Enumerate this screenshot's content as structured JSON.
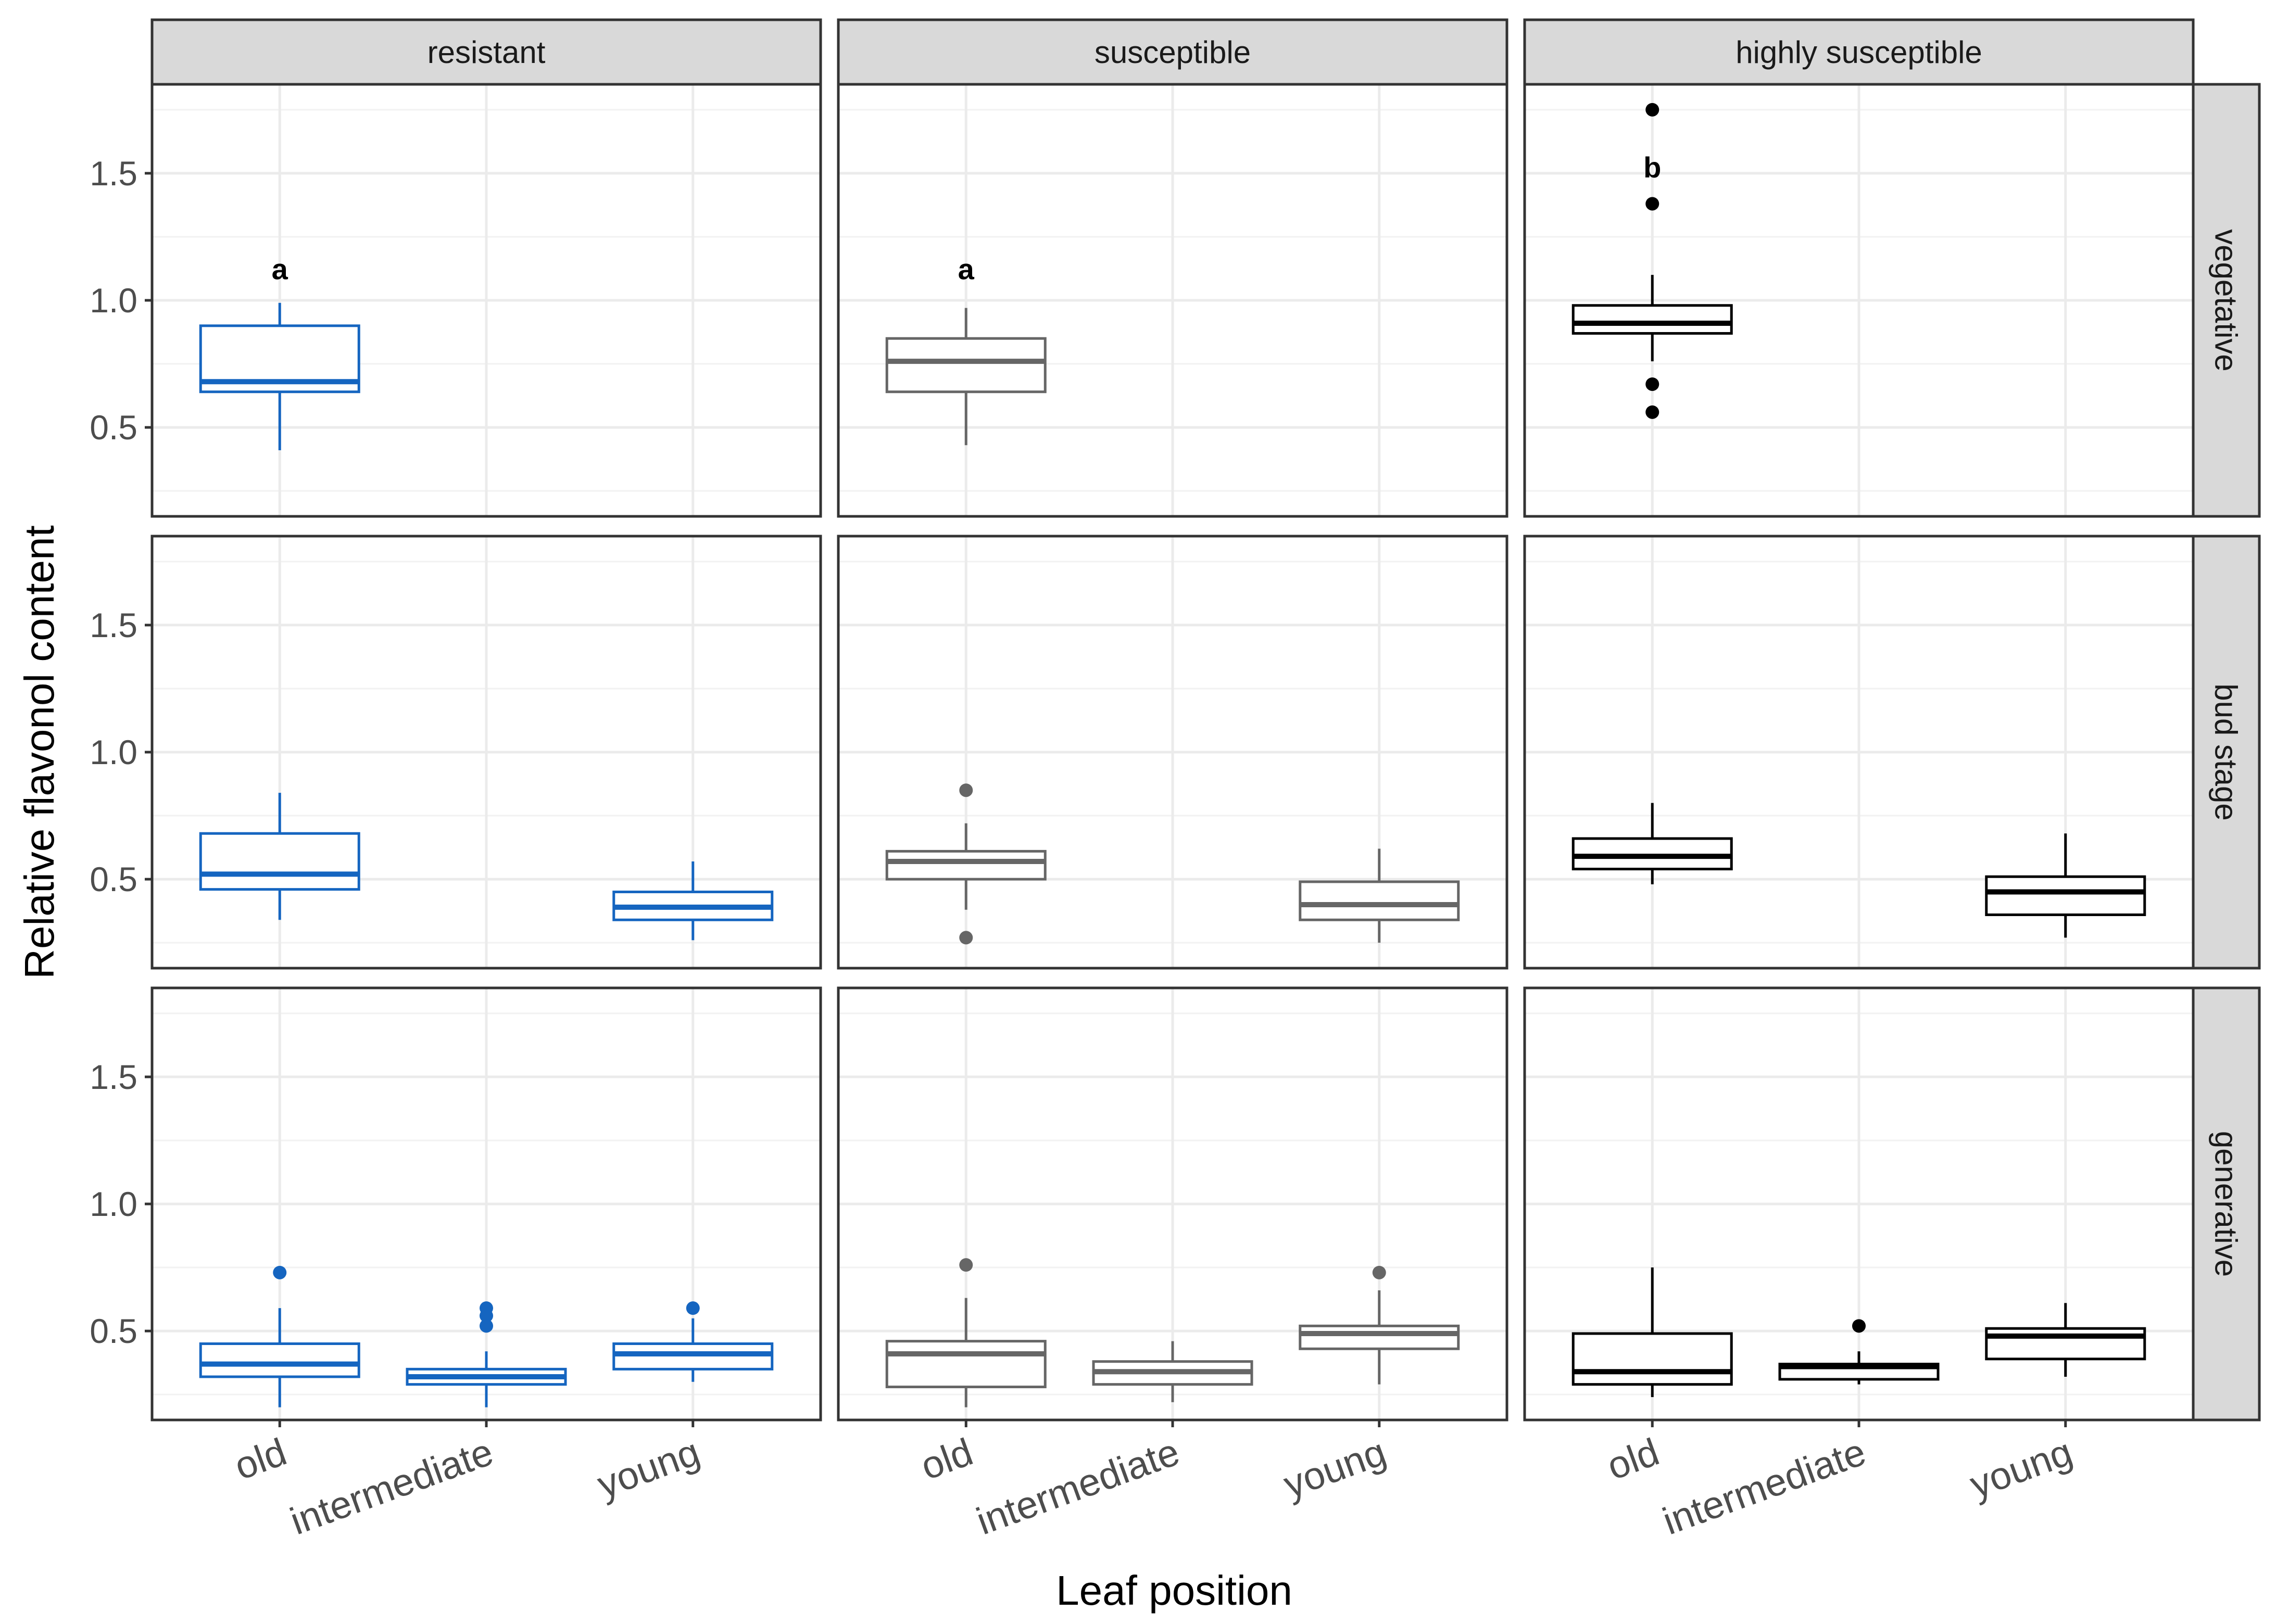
{
  "chart_data": {
    "type": "boxplot",
    "xlabel": "Leaf position",
    "ylabel": "Relative flavonol content",
    "ylim": [
      0.15,
      1.85
    ],
    "yticks": [
      0.5,
      1.0,
      1.5
    ],
    "ytick_labels": [
      "0.5",
      "1.0",
      "1.5"
    ],
    "categories": [
      "old",
      "intermediate",
      "young"
    ],
    "columns": [
      {
        "label": "resistant",
        "color": "#1565C0"
      },
      {
        "label": "susceptible",
        "color": "#666666"
      },
      {
        "label": "highly susceptible",
        "color": "#000000"
      }
    ],
    "rows": [
      {
        "label": "vegetative"
      },
      {
        "label": "bud stage"
      },
      {
        "label": "generative"
      }
    ],
    "boxes": [
      {
        "row": 0,
        "col": 0,
        "cat": 0,
        "lower": 0.41,
        "q1": 0.64,
        "median": 0.68,
        "q3": 0.9,
        "upper": 0.99,
        "outliers": []
      },
      {
        "row": 0,
        "col": 1,
        "cat": 0,
        "lower": 0.43,
        "q1": 0.64,
        "median": 0.76,
        "q3": 0.85,
        "upper": 0.97,
        "outliers": []
      },
      {
        "row": 0,
        "col": 2,
        "cat": 0,
        "lower": 0.76,
        "q1": 0.87,
        "median": 0.91,
        "q3": 0.98,
        "upper": 1.1,
        "outliers": [
          1.75,
          1.38,
          0.67,
          0.56
        ]
      },
      {
        "row": 1,
        "col": 0,
        "cat": 0,
        "lower": 0.34,
        "q1": 0.46,
        "median": 0.52,
        "q3": 0.68,
        "upper": 0.84,
        "outliers": []
      },
      {
        "row": 1,
        "col": 0,
        "cat": 2,
        "lower": 0.26,
        "q1": 0.34,
        "median": 0.39,
        "q3": 0.45,
        "upper": 0.57,
        "outliers": []
      },
      {
        "row": 1,
        "col": 1,
        "cat": 0,
        "lower": 0.38,
        "q1": 0.5,
        "median": 0.57,
        "q3": 0.61,
        "upper": 0.72,
        "outliers": [
          0.85,
          0.27
        ]
      },
      {
        "row": 1,
        "col": 1,
        "cat": 2,
        "lower": 0.25,
        "q1": 0.34,
        "median": 0.4,
        "q3": 0.49,
        "upper": 0.62,
        "outliers": []
      },
      {
        "row": 1,
        "col": 2,
        "cat": 0,
        "lower": 0.48,
        "q1": 0.54,
        "median": 0.59,
        "q3": 0.66,
        "upper": 0.8,
        "outliers": []
      },
      {
        "row": 1,
        "col": 2,
        "cat": 2,
        "lower": 0.27,
        "q1": 0.36,
        "median": 0.45,
        "q3": 0.51,
        "upper": 0.68,
        "outliers": []
      },
      {
        "row": 2,
        "col": 0,
        "cat": 0,
        "lower": 0.2,
        "q1": 0.32,
        "median": 0.37,
        "q3": 0.45,
        "upper": 0.59,
        "outliers": [
          0.73
        ]
      },
      {
        "row": 2,
        "col": 0,
        "cat": 1,
        "lower": 0.2,
        "q1": 0.29,
        "median": 0.32,
        "q3": 0.35,
        "upper": 0.42,
        "outliers": [
          0.59,
          0.56,
          0.52
        ]
      },
      {
        "row": 2,
        "col": 0,
        "cat": 2,
        "lower": 0.3,
        "q1": 0.35,
        "median": 0.41,
        "q3": 0.45,
        "upper": 0.55,
        "outliers": [
          0.59
        ]
      },
      {
        "row": 2,
        "col": 1,
        "cat": 0,
        "lower": 0.2,
        "q1": 0.28,
        "median": 0.41,
        "q3": 0.46,
        "upper": 0.63,
        "outliers": [
          0.76
        ]
      },
      {
        "row": 2,
        "col": 1,
        "cat": 1,
        "lower": 0.22,
        "q1": 0.29,
        "median": 0.34,
        "q3": 0.38,
        "upper": 0.46,
        "outliers": []
      },
      {
        "row": 2,
        "col": 1,
        "cat": 2,
        "lower": 0.29,
        "q1": 0.43,
        "median": 0.49,
        "q3": 0.52,
        "upper": 0.66,
        "outliers": [
          0.73
        ]
      },
      {
        "row": 2,
        "col": 2,
        "cat": 0,
        "lower": 0.24,
        "q1": 0.29,
        "median": 0.34,
        "q3": 0.49,
        "upper": 0.75,
        "outliers": []
      },
      {
        "row": 2,
        "col": 2,
        "cat": 1,
        "lower": 0.29,
        "q1": 0.31,
        "median": 0.36,
        "q3": 0.37,
        "upper": 0.42,
        "outliers": [
          0.52
        ]
      },
      {
        "row": 2,
        "col": 2,
        "cat": 2,
        "lower": 0.32,
        "q1": 0.39,
        "median": 0.48,
        "q3": 0.51,
        "upper": 0.61,
        "outliers": []
      }
    ],
    "annotations": [
      {
        "row": 0,
        "col": 0,
        "cat": 0,
        "y": 1.12,
        "text": "a"
      },
      {
        "row": 0,
        "col": 1,
        "cat": 0,
        "y": 1.12,
        "text": "a"
      },
      {
        "row": 0,
        "col": 2,
        "cat": 0,
        "y": 1.52,
        "text": "b"
      }
    ]
  }
}
